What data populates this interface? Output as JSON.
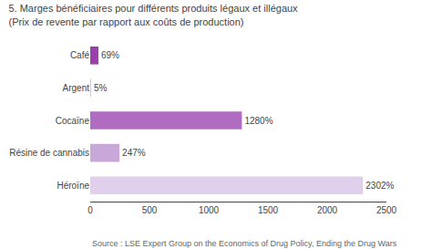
{
  "chart_data": {
    "type": "bar",
    "orientation": "horizontal",
    "title": "5. Marges bénéficiaires pour différents produits légaux et illégaux (Prix de revente par rapport aux coûts de production)",
    "categories": [
      "Café",
      "Argent",
      "Cocaïne",
      "Résine de cannabis",
      "Héroïne"
    ],
    "values": [
      69,
      5,
      1280,
      247,
      2302
    ],
    "value_labels": [
      "69%",
      "5%",
      "1280%",
      "247%",
      "2302%"
    ],
    "data_labels": true,
    "colors": [
      "#9b3faa",
      "#d8c0e8",
      "#b06cc0",
      "#c8a8d8",
      "#e0d0ec"
    ],
    "xlim": [
      0,
      2500
    ],
    "xticks": [
      0,
      500,
      1000,
      1500,
      2000,
      2500
    ],
    "grid": false,
    "annotations": [
      "Source : LSE Expert Group on the Economics of Drug Policy, Ending the Drug Wars"
    ]
  }
}
